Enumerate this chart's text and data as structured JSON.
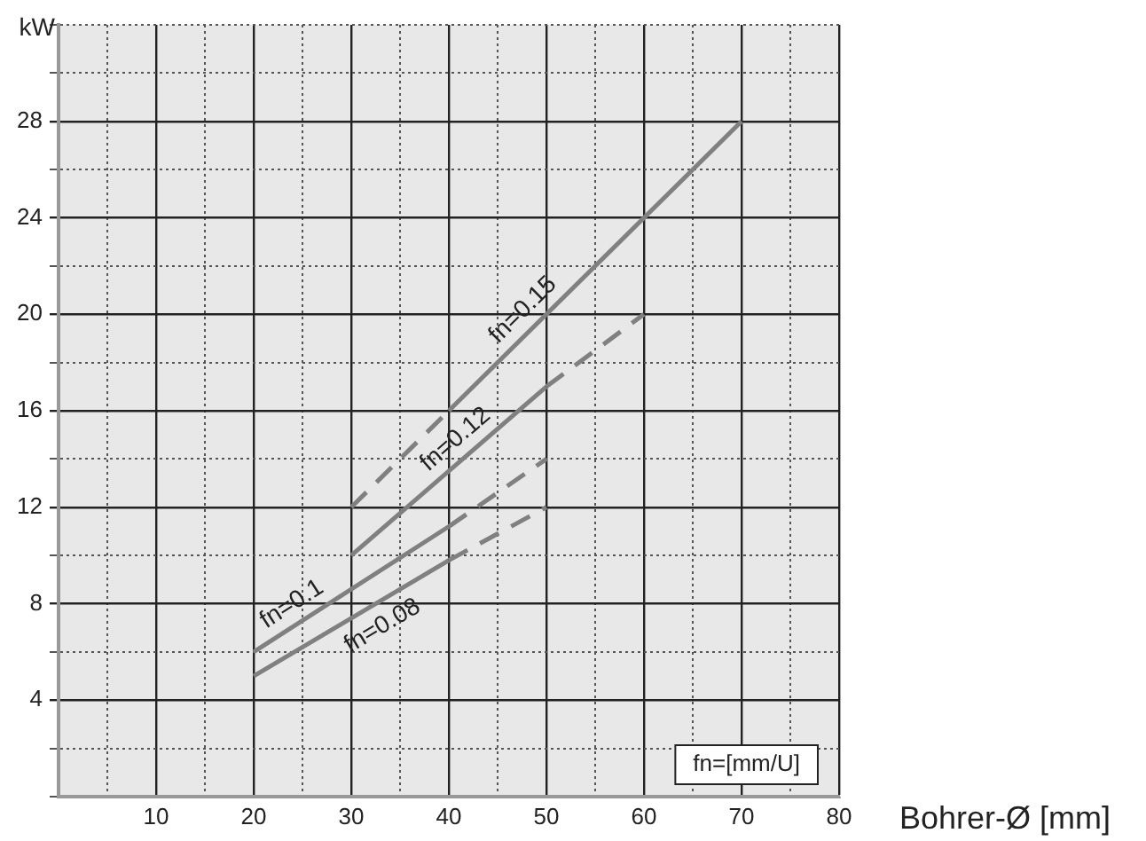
{
  "chart_data": {
    "type": "line",
    "xlabel": "Bohrer-Ø [mm]",
    "ylabel": "kW",
    "xlim": [
      0,
      80
    ],
    "ylim": [
      0,
      32
    ],
    "xticks": [
      {
        "value": 0,
        "label": null
      },
      {
        "value": 5,
        "label": null
      },
      10,
      {
        "value": 15,
        "label": null
      },
      20,
      {
        "value": 25,
        "label": null
      },
      30,
      {
        "value": 35,
        "label": null
      },
      40,
      {
        "value": 45,
        "label": null
      },
      50,
      {
        "value": 55,
        "label": null
      },
      60,
      {
        "value": 65,
        "label": null
      },
      70,
      {
        "value": 75,
        "label": null
      },
      80
    ],
    "yticks": [
      {
        "value": 0,
        "label": null
      },
      {
        "value": 2,
        "label": null
      },
      4,
      {
        "value": 6,
        "label": null
      },
      8,
      {
        "value": 10,
        "label": null
      },
      12,
      {
        "value": 14,
        "label": null
      },
      16,
      {
        "value": 18,
        "label": null
      },
      20,
      {
        "value": 22,
        "label": null
      },
      24,
      {
        "value": 26,
        "label": null
      },
      28,
      {
        "value": 30,
        "label": null
      },
      {
        "value": 32,
        "label": null
      }
    ],
    "grid": true,
    "legend": false,
    "marker": "none",
    "series": [
      {
        "color": "#808080",
        "line_style": "solid",
        "x": [
          20,
          40
        ],
        "values": [
          5,
          9.8
        ]
      },
      {
        "color": "#808080",
        "line_style": "dashed",
        "x": [
          40,
          50
        ],
        "values": [
          9.8,
          12
        ]
      },
      {
        "color": "#808080",
        "line_style": "solid",
        "x": [
          20,
          40
        ],
        "values": [
          6,
          11.2
        ]
      },
      {
        "color": "#808080",
        "line_style": "dashed",
        "x": [
          40,
          50
        ],
        "values": [
          11.2,
          14
        ]
      },
      {
        "color": "#808080",
        "line_style": "solid",
        "x": [
          30,
          50
        ],
        "values": [
          10,
          17
        ]
      },
      {
        "color": "#808080",
        "line_style": "dashed",
        "x": [
          50,
          60
        ],
        "values": [
          17,
          20
        ]
      },
      {
        "color": "#808080",
        "line_style": "dashed",
        "x": [
          30,
          40
        ],
        "values": [
          12,
          16
        ]
      },
      {
        "color": "#808080",
        "line_style": "solid",
        "x": [
          40,
          70
        ],
        "values": [
          16,
          28
        ]
      }
    ],
    "annotations": [
      {
        "text": "fn=0.15",
        "x": 49,
        "y": 19.6
      },
      {
        "text": "fn=0.12",
        "x": 42,
        "y": 14.2
      },
      {
        "text": "fn=0.1",
        "x": 25,
        "y": 7.3
      },
      {
        "text": "fn=0.08",
        "x": 32,
        "y": 7.9
      },
      "fn=[mm/U]"
    ]
  }
}
